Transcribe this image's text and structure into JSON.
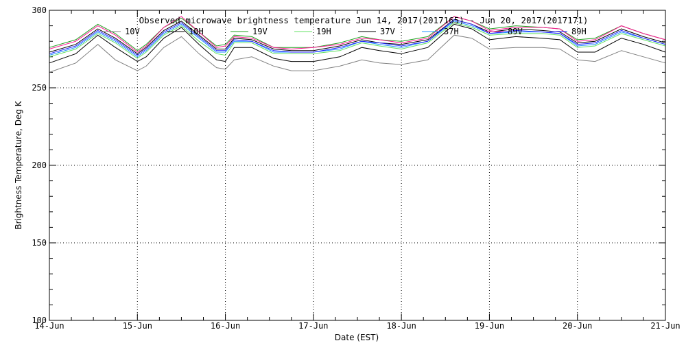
{
  "chart_data": {
    "type": "line",
    "title": "Observed microwave brightness temperature Jun 14, 2017(2017165) - Jun 20, 2017(2017171)",
    "xlabel": "Date (EST)",
    "ylabel": "Brightness Temperature, Deg K",
    "x_ticks": [
      "14-Jun",
      "15-Jun",
      "16-Jun",
      "17-Jun",
      "18-Jun",
      "19-Jun",
      "20-Jun",
      "21-Jun"
    ],
    "xlim": [
      "2017-06-14",
      "2017-06-21"
    ],
    "ylim": [
      100,
      300
    ],
    "y_ticks": [
      100,
      150,
      200,
      250,
      300
    ],
    "grid": true,
    "legend_position": "top",
    "x_knots_day": [
      0,
      0.3,
      0.55,
      0.75,
      1.0,
      1.1,
      1.3,
      1.5,
      1.7,
      1.9,
      2.0,
      2.1,
      2.3,
      2.55,
      2.75,
      3.0,
      3.3,
      3.55,
      3.75,
      4.0,
      4.3,
      4.6,
      4.8,
      5.0,
      5.3,
      5.6,
      5.8,
      6.0,
      6.2,
      6.5,
      6.75,
      7.0
    ],
    "series": [
      {
        "name": "10V",
        "color": "#808080",
        "values": [
          260,
          266,
          278,
          268,
          261,
          264,
          276,
          283,
          272,
          263,
          262,
          268,
          270,
          264,
          261,
          261,
          264,
          268,
          266,
          265,
          268,
          284,
          282,
          275,
          276,
          276,
          275,
          268,
          267,
          274,
          270,
          266
        ]
      },
      {
        "name": "10H",
        "color": "#000000",
        "values": [
          266,
          272,
          284,
          276,
          267,
          270,
          282,
          289,
          278,
          268,
          267,
          276,
          276,
          269,
          267,
          267,
          270,
          276,
          274,
          272,
          276,
          291,
          288,
          281,
          283,
          282,
          281,
          273,
          273,
          282,
          278,
          273
        ]
      },
      {
        "name": "19V",
        "color": "#1ea01e",
        "values": [
          276,
          281,
          291,
          285,
          274,
          278,
          289,
          295,
          286,
          277,
          278,
          284,
          283,
          276,
          276,
          276,
          279,
          283,
          281,
          280,
          283,
          296,
          293,
          288,
          290,
          289,
          288,
          281,
          282,
          290,
          285,
          281
        ]
      },
      {
        "name": "19H",
        "color": "#60e060",
        "values": [
          270,
          275,
          285,
          279,
          269,
          273,
          284,
          290,
          280,
          272,
          271,
          279,
          279,
          272,
          272,
          272,
          274,
          279,
          277,
          275,
          279,
          292,
          289,
          284,
          285,
          285,
          284,
          276,
          277,
          285,
          281,
          277
        ]
      },
      {
        "name": "37V",
        "color": "#000000",
        "values": [
          273,
          278,
          288,
          282,
          272,
          276,
          287,
          293,
          284,
          275,
          275,
          282,
          281,
          275,
          274,
          274,
          277,
          281,
          279,
          278,
          281,
          294,
          291,
          286,
          288,
          287,
          286,
          279,
          280,
          288,
          283,
          279
        ]
      },
      {
        "name": "37H",
        "color": "#1e90ff",
        "values": [
          271,
          276,
          286,
          280,
          270,
          274,
          285,
          291,
          282,
          273,
          273,
          280,
          280,
          273,
          273,
          273,
          275,
          280,
          278,
          276,
          280,
          293,
          290,
          285,
          286,
          286,
          285,
          277,
          278,
          286,
          282,
          278
        ]
      },
      {
        "name": "89V",
        "color": "#ff1493",
        "values": [
          275,
          280,
          290,
          284,
          273,
          277,
          289,
          296,
          286,
          276,
          277,
          283,
          282,
          276,
          275,
          276,
          278,
          282,
          281,
          279,
          282,
          296,
          293,
          287,
          289,
          289,
          288,
          280,
          281,
          290,
          285,
          281
        ]
      },
      {
        "name": "89H",
        "color": "#2020ff",
        "values": [
          272,
          277,
          287,
          281,
          271,
          275,
          286,
          292,
          283,
          274,
          274,
          281,
          280,
          274,
          273,
          273,
          276,
          280,
          279,
          277,
          280,
          294,
          291,
          285,
          287,
          286,
          285,
          278,
          279,
          287,
          282,
          278
        ]
      }
    ]
  }
}
